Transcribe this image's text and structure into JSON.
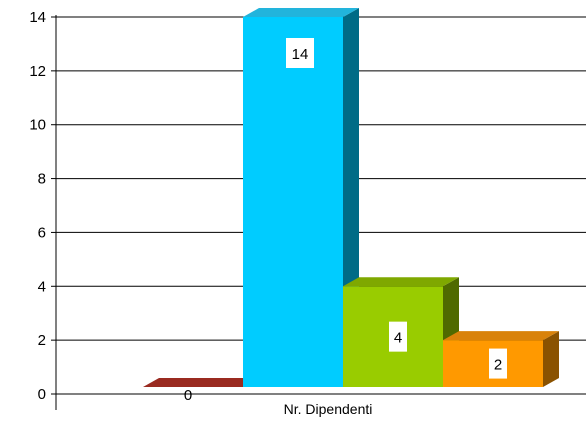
{
  "chart_data": {
    "type": "bar",
    "categories": [
      "Nr. Dipendenti"
    ],
    "series": [
      {
        "values": [
          0
        ],
        "color": "#7a1a12",
        "side_color": "#5a120c",
        "top_color": "#9a2a20"
      },
      {
        "values": [
          14
        ],
        "color": "#00ccff",
        "side_color": "#006b86",
        "top_color": "#22b4dc"
      },
      {
        "values": [
          4
        ],
        "color": "#99cc00",
        "side_color": "#4f6a00",
        "top_color": "#7fa800"
      },
      {
        "values": [
          2
        ],
        "color": "#ff9900",
        "side_color": "#8a5200",
        "top_color": "#d9820a"
      }
    ],
    "data_labels": [
      "0",
      "14",
      "4",
      "2"
    ],
    "yticks": [
      "0",
      "2",
      "4",
      "6",
      "8",
      "10",
      "12",
      "14"
    ],
    "ylim": [
      0,
      14
    ],
    "grid": true,
    "legend": "none",
    "style": "3d-bar"
  }
}
